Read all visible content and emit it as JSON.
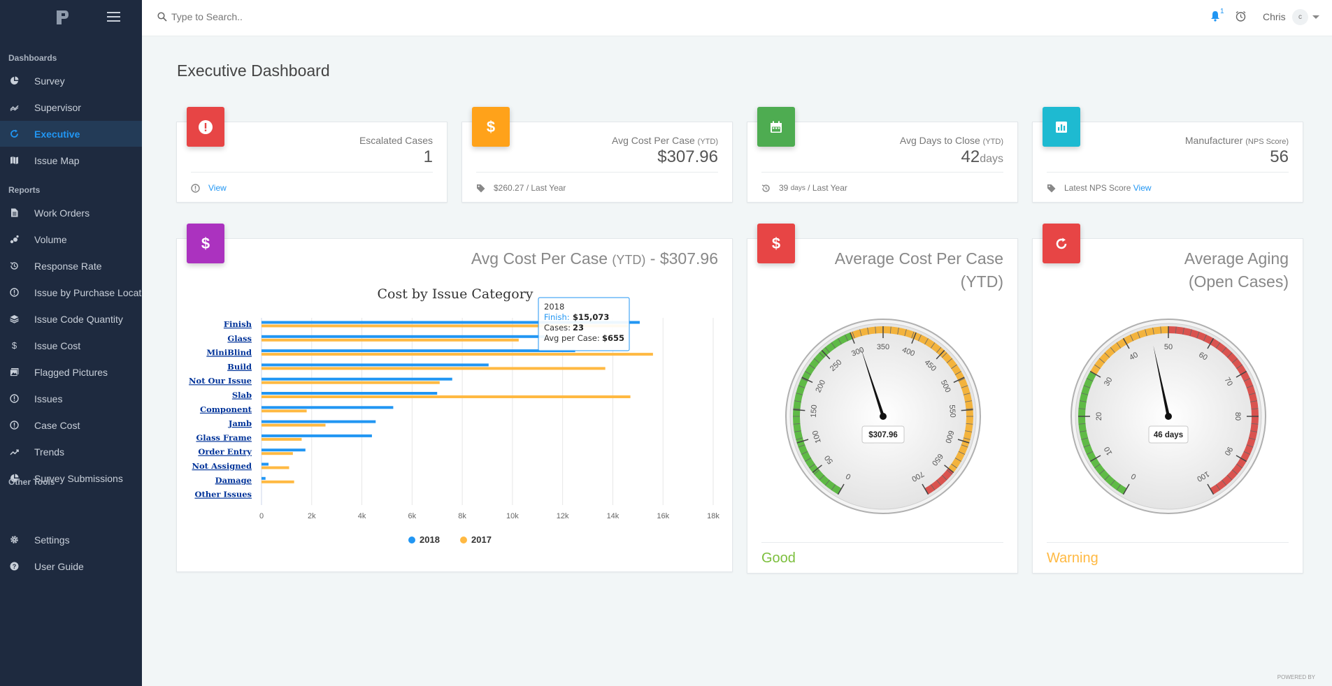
{
  "colors": {
    "sidebar_bg": "#1e2a3f",
    "accent": "#2196f3",
    "series_2018": "#2196f3",
    "series_2017": "#ffb942",
    "good": "#7cbf3d",
    "warning": "#ffb942"
  },
  "sidebar": {
    "sections": [
      {
        "label": "Dashboards",
        "items": [
          {
            "label": "Survey",
            "icon": "pie-chart-icon"
          },
          {
            "label": "Supervisor",
            "icon": "trend-icon"
          },
          {
            "label": "Executive",
            "icon": "refresh-icon",
            "active": true
          },
          {
            "label": "Issue Map",
            "icon": "map-icon"
          }
        ]
      },
      {
        "label": "Reports",
        "items": [
          {
            "label": "Work Orders",
            "icon": "document-icon"
          },
          {
            "label": "Volume",
            "icon": "scatter-icon"
          },
          {
            "label": "Response Rate",
            "icon": "history-icon"
          },
          {
            "label": "Issue by Purchase Location",
            "icon": "info-icon"
          },
          {
            "label": "Issue Code Quantity",
            "icon": "layers-icon"
          },
          {
            "label": "Issue Cost",
            "icon": "dollar-icon"
          },
          {
            "label": "Flagged Pictures",
            "icon": "images-icon"
          },
          {
            "label": "Issues",
            "icon": "info-icon"
          },
          {
            "label": "Case Cost",
            "icon": "info-icon"
          },
          {
            "label": "Trends",
            "icon": "trend-up-icon"
          },
          {
            "label": "Survey Submissions",
            "icon": "pie-chart-icon"
          }
        ]
      },
      {
        "label": "Other Tools",
        "items": [
          {
            "label": "Settings",
            "icon": "gear-icon"
          },
          {
            "label": "User Guide",
            "icon": "help-icon"
          }
        ]
      }
    ]
  },
  "topbar": {
    "search_placeholder": "Type to Search..",
    "notification_count": "1",
    "user_name": "Chris",
    "avatar_initial": "c"
  },
  "page": {
    "title": "Executive Dashboard"
  },
  "stats": [
    {
      "label": "Escalated Cases",
      "label_suffix": "",
      "value": "1",
      "unit": "",
      "foot_text": "",
      "foot_link": "View",
      "color": "#e74545",
      "icon": "alert-icon",
      "foot_icon": "info-icon"
    },
    {
      "label": "Avg Cost Per Case",
      "label_suffix": "(YTD)",
      "value": "$307.96",
      "unit": "",
      "foot_text": "$260.27 / Last Year",
      "foot_link": "",
      "color": "#ffa21a",
      "icon": "dollar-icon",
      "foot_icon": "tag-icon"
    },
    {
      "label": "Avg Days to Close",
      "label_suffix": "(YTD)",
      "value": "42",
      "unit": "days",
      "foot_text_pre": "39",
      "foot_text_small": "days",
      "foot_text": "/ Last Year",
      "foot_link": "",
      "color": "#4eac51",
      "icon": "calendar-icon",
      "foot_icon": "history-icon"
    },
    {
      "label": "Manufacturer",
      "label_suffix": "(NPS Score)",
      "value": "56",
      "unit": "",
      "foot_text": "Latest NPS Score",
      "foot_link": "View",
      "color": "#1ebad1",
      "icon": "bar-chart-icon",
      "foot_icon": "tag-icon"
    }
  ],
  "chart_card": {
    "title": "Avg Cost Per Case",
    "title_suffix": "(YTD)",
    "title_tail": "- $307.96",
    "color": "#ab32bf"
  },
  "chart_data": {
    "type": "bar",
    "orientation": "horizontal",
    "title": "Cost by Issue Category",
    "categories": [
      "Finish",
      "Glass",
      "MiniBlind",
      "Build",
      "Not Our Issue",
      "Slab",
      "Component",
      "Jamb",
      "Glass Frame",
      "Order Entry",
      "Not Assigned",
      "Damage",
      "Other Issues"
    ],
    "series": [
      {
        "name": "2018",
        "color": "#2196f3",
        "values": [
          15073,
          11300,
          12500,
          9050,
          7600,
          7000,
          5250,
          4550,
          4400,
          1750,
          280,
          160,
          0
        ]
      },
      {
        "name": "2017",
        "color": "#ffb942",
        "values": [
          14600,
          10250,
          15600,
          13700,
          7100,
          14700,
          1800,
          2550,
          1600,
          1250,
          1100,
          1300,
          0
        ]
      }
    ],
    "xlim": [
      0,
      18000
    ],
    "ticks": [
      "0",
      "2k",
      "4k",
      "6k",
      "8k",
      "10k",
      "12k",
      "14k",
      "16k",
      "18k"
    ],
    "legend_position": "bottom",
    "grid": true,
    "tooltip": {
      "header": "2018",
      "series_label": "Finish:",
      "series_value": "$15,073",
      "cases_label": "Cases:",
      "cases_value": "23",
      "avg_label": "Avg per Case:",
      "avg_value": "$655"
    }
  },
  "gauges": [
    {
      "title_line1": "Average Cost Per Case",
      "title_line2": "(YTD)",
      "value": 307.96,
      "min": 0,
      "max": 700,
      "ticks": [
        0,
        50,
        100,
        150,
        200,
        250,
        300,
        350,
        400,
        450,
        500,
        550,
        600,
        650,
        700
      ],
      "bands": [
        {
          "from": 0,
          "to": 300,
          "color": "#5fba46"
        },
        {
          "from": 300,
          "to": 650,
          "color": "#f3b33d"
        },
        {
          "from": 650,
          "to": 700,
          "color": "#d9534f"
        }
      ],
      "readout": "$307.96",
      "status": "Good",
      "status_color": "#7cbf3d",
      "color": "#e74545",
      "icon": "dollar-icon"
    },
    {
      "title_line1": "Average Aging",
      "title_line2": "(Open Cases)",
      "value": 46,
      "min": 0,
      "max": 100,
      "ticks": [
        0,
        10,
        20,
        30,
        40,
        50,
        60,
        70,
        80,
        90,
        100
      ],
      "bands": [
        {
          "from": 0,
          "to": 30,
          "color": "#5fba46"
        },
        {
          "from": 30,
          "to": 50,
          "color": "#f3b33d"
        },
        {
          "from": 50,
          "to": 100,
          "color": "#d9534f"
        }
      ],
      "readout": "46 days",
      "status": "Warning",
      "status_color": "#ffb942",
      "color": "#e74545",
      "icon": "refresh-icon"
    }
  ],
  "footer": {
    "powered": "POWERED BY"
  }
}
